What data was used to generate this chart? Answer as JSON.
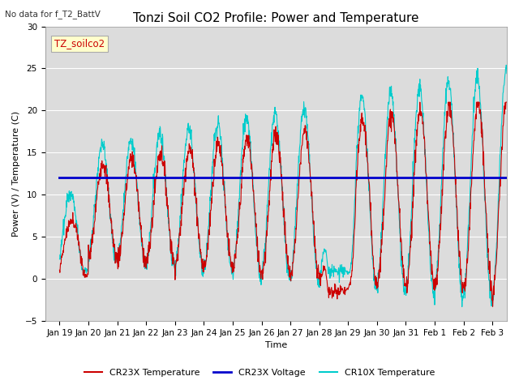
{
  "title": "Tonzi Soil CO2 Profile: Power and Temperature",
  "suptitle": "No data for f_T2_BattV",
  "ylabel": "Power (V) / Temperature (C)",
  "xlabel": "Time",
  "legend_box_label": "TZ_soilco2",
  "ylim": [
    -5,
    30
  ],
  "yticks": [
    -5,
    0,
    5,
    10,
    15,
    20,
    25,
    30
  ],
  "xtick_labels": [
    "Jan 19",
    "Jan 20",
    "Jan 21",
    "Jan 22",
    "Jan 23",
    "Jan 24",
    "Jan 25",
    "Jan 26",
    "Jan 27",
    "Jan 28",
    "Jan 29",
    "Jan 30",
    "Jan 31",
    "Feb 1",
    "Feb 2",
    "Feb 3"
  ],
  "voltage_value": 12.0,
  "plot_bg_color": "#dcdcdc",
  "fig_bg_color": "#ffffff",
  "line_cr23x_temp_color": "#cc0000",
  "line_cr10x_temp_color": "#00cccc",
  "line_voltage_color": "#0000cc",
  "legend_entries": [
    "CR23X Temperature",
    "CR23X Voltage",
    "CR10X Temperature"
  ],
  "title_fontsize": 11,
  "label_fontsize": 8,
  "tick_fontsize": 7.5
}
